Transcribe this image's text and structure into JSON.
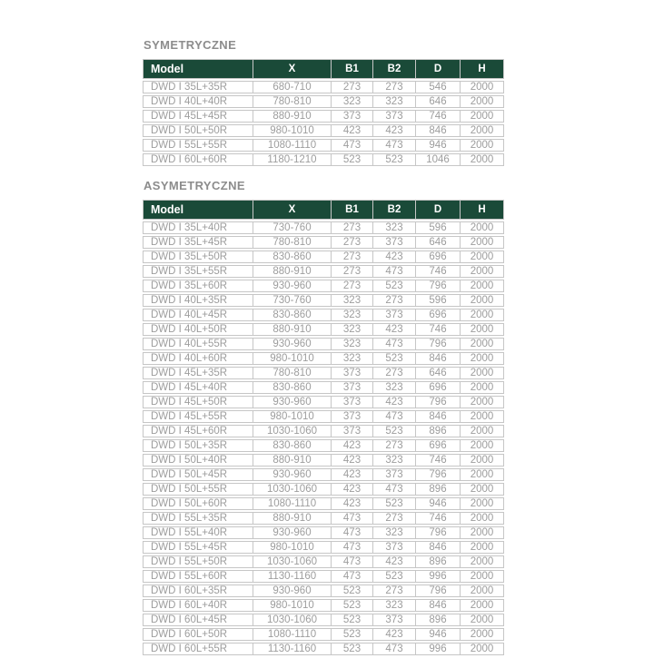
{
  "colors": {
    "header_bg": "#1a4a38",
    "header_text": "#ffffff",
    "body_text": "#9d9d9d",
    "border": "#c6c6c6",
    "title_text": "#8c8c8c",
    "page_bg": "#ffffff"
  },
  "tables": [
    {
      "title": "SYMETRYCZNE",
      "columns": [
        "Model",
        "X",
        "B1",
        "B2",
        "D",
        "H"
      ],
      "rows": [
        [
          "DWD I 35L+35R",
          "680-710",
          "273",
          "273",
          "546",
          "2000"
        ],
        [
          "DWD I 40L+40R",
          "780-810",
          "323",
          "323",
          "646",
          "2000"
        ],
        [
          "DWD I 45L+45R",
          "880-910",
          "373",
          "373",
          "746",
          "2000"
        ],
        [
          "DWD I 50L+50R",
          "980-1010",
          "423",
          "423",
          "846",
          "2000"
        ],
        [
          "DWD I 55L+55R",
          "1080-1110",
          "473",
          "473",
          "946",
          "2000"
        ],
        [
          "DWD I 60L+60R",
          "1180-1210",
          "523",
          "523",
          "1046",
          "2000"
        ]
      ]
    },
    {
      "title": "ASYMETRYCZNE",
      "columns": [
        "Model",
        "X",
        "B1",
        "B2",
        "D",
        "H"
      ],
      "rows": [
        [
          "DWD I 35L+40R",
          "730-760",
          "273",
          "323",
          "596",
          "2000"
        ],
        [
          "DWD I 35L+45R",
          "780-810",
          "273",
          "373",
          "646",
          "2000"
        ],
        [
          "DWD I 35L+50R",
          "830-860",
          "273",
          "423",
          "696",
          "2000"
        ],
        [
          "DWD I 35L+55R",
          "880-910",
          "273",
          "473",
          "746",
          "2000"
        ],
        [
          "DWD I 35L+60R",
          "930-960",
          "273",
          "523",
          "796",
          "2000"
        ],
        [
          "DWD I 40L+35R",
          "730-760",
          "323",
          "273",
          "596",
          "2000"
        ],
        [
          "DWD I 40L+45R",
          "830-860",
          "323",
          "373",
          "696",
          "2000"
        ],
        [
          "DWD I 40L+50R",
          "880-910",
          "323",
          "423",
          "746",
          "2000"
        ],
        [
          "DWD I 40L+55R",
          "930-960",
          "323",
          "473",
          "796",
          "2000"
        ],
        [
          "DWD I 40L+60R",
          "980-1010",
          "323",
          "523",
          "846",
          "2000"
        ],
        [
          "DWD I 45L+35R",
          "780-810",
          "373",
          "273",
          "646",
          "2000"
        ],
        [
          "DWD I 45L+40R",
          "830-860",
          "373",
          "323",
          "696",
          "2000"
        ],
        [
          "DWD I 45L+50R",
          "930-960",
          "373",
          "423",
          "796",
          "2000"
        ],
        [
          "DWD I 45L+55R",
          "980-1010",
          "373",
          "473",
          "846",
          "2000"
        ],
        [
          "DWD I 45L+60R",
          "1030-1060",
          "373",
          "523",
          "896",
          "2000"
        ],
        [
          "DWD I 50L+35R",
          "830-860",
          "423",
          "273",
          "696",
          "2000"
        ],
        [
          "DWD I 50L+40R",
          "880-910",
          "423",
          "323",
          "746",
          "2000"
        ],
        [
          "DWD I 50L+45R",
          "930-960",
          "423",
          "373",
          "796",
          "2000"
        ],
        [
          "DWD I 50L+55R",
          "1030-1060",
          "423",
          "473",
          "896",
          "2000"
        ],
        [
          "DWD I 50L+60R",
          "1080-1110",
          "423",
          "523",
          "946",
          "2000"
        ],
        [
          "DWD I 55L+35R",
          "880-910",
          "473",
          "273",
          "746",
          "2000"
        ],
        [
          "DWD I 55L+40R",
          "930-960",
          "473",
          "323",
          "796",
          "2000"
        ],
        [
          "DWD I 55L+45R",
          "980-1010",
          "473",
          "373",
          "846",
          "2000"
        ],
        [
          "DWD I 55L+50R",
          "1030-1060",
          "473",
          "423",
          "896",
          "2000"
        ],
        [
          "DWD I 55L+60R",
          "1130-1160",
          "473",
          "523",
          "996",
          "2000"
        ],
        [
          "DWD I 60L+35R",
          "930-960",
          "523",
          "273",
          "796",
          "2000"
        ],
        [
          "DWD I 60L+40R",
          "980-1010",
          "523",
          "323",
          "846",
          "2000"
        ],
        [
          "DWD I 60L+45R",
          "1030-1060",
          "523",
          "373",
          "896",
          "2000"
        ],
        [
          "DWD I 60L+50R",
          "1080-1110",
          "523",
          "423",
          "946",
          "2000"
        ],
        [
          "DWD I 60L+55R",
          "1130-1160",
          "523",
          "473",
          "996",
          "2000"
        ]
      ]
    }
  ]
}
